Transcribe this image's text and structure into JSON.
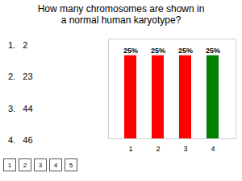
{
  "chart_data": {
    "type": "bar",
    "title": "How many chromosomes are shown in\na normal human karyotype?",
    "annotations": [
      "1.   2",
      "2.   23",
      "3.   44",
      "4.   46"
    ],
    "buttons": [
      "1",
      "2",
      "3",
      "4",
      "5"
    ],
    "categories": [
      1,
      2,
      3,
      4
    ],
    "values": [
      25,
      25,
      25,
      25
    ],
    "value_labels": [
      "25%",
      "25%",
      "25%",
      "25%"
    ],
    "colors": [
      "#ff0000",
      "#ff0000",
      "#ff0000",
      "#008000"
    ],
    "ylim": [
      0,
      30
    ],
    "data_labels": true,
    "tick_labels": "x",
    "grid": false
  }
}
